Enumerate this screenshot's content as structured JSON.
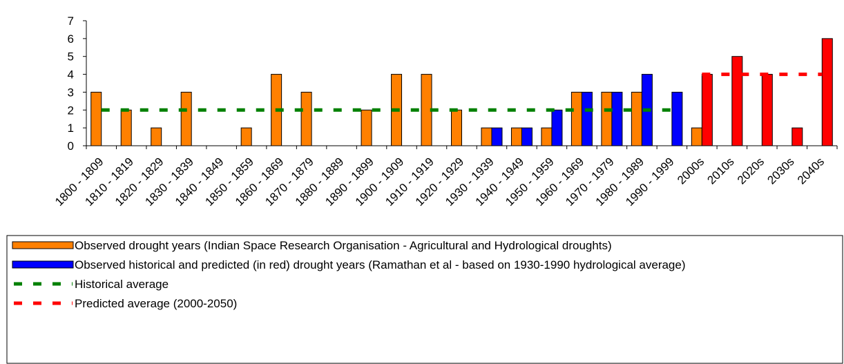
{
  "chart_data": {
    "type": "bar",
    "categories": [
      "1800 - 1809",
      "1810 - 1819",
      "1820 - 1829",
      "1830 - 1839",
      "1840 - 1849",
      "1850 - 1859",
      "1860 - 1869",
      "1870 - 1879",
      "1880 - 1889",
      "1890 - 1899",
      "1900 - 1909",
      "1910 - 1919",
      "1920 - 1929",
      "1930 - 1939",
      "1940 - 1949",
      "1950 - 1959",
      "1960 - 1969",
      "1970 - 1979",
      "1980 - 1989",
      "1990 - 1999",
      "2000s",
      "2010s",
      "2020s",
      "2030s",
      "2040s"
    ],
    "series": [
      {
        "name": "Observed drought years (Indian Space Research Organisation - Agricultural and Hydrological droughts)",
        "color": "#ff8000",
        "values": [
          3,
          2,
          1,
          3,
          0,
          1,
          4,
          3,
          0,
          2,
          4,
          4,
          2,
          1,
          1,
          1,
          3,
          3,
          3,
          null,
          1,
          null,
          null,
          null,
          null
        ]
      },
      {
        "name": "Observed historical and predicted (in red) drought years (Ramathan et al - based on 1930-1990 hydrological average)",
        "color": "#0000ff",
        "values": [
          null,
          null,
          null,
          null,
          null,
          null,
          null,
          null,
          null,
          null,
          null,
          null,
          null,
          1,
          1,
          2,
          3,
          3,
          4,
          3,
          4,
          5,
          4,
          1,
          6
        ],
        "point_colors": [
          null,
          null,
          null,
          null,
          null,
          null,
          null,
          null,
          null,
          null,
          null,
          null,
          null,
          "#0000ff",
          "#0000ff",
          "#0000ff",
          "#0000ff",
          "#0000ff",
          "#0000ff",
          "#0000ff",
          "#ff0000",
          "#ff0000",
          "#ff0000",
          "#ff0000",
          "#ff0000"
        ]
      },
      {
        "name": "Historical average",
        "color": "#008000",
        "style": "dashed",
        "values": [
          2,
          2,
          2,
          2,
          2,
          2,
          2,
          2,
          2,
          2,
          2,
          2,
          2,
          2,
          2,
          2,
          2,
          2,
          2,
          2,
          null,
          null,
          null,
          null,
          null
        ]
      },
      {
        "name": "Predicted average (2000-2050)",
        "color": "#ff0000",
        "style": "dashed",
        "values": [
          null,
          null,
          null,
          null,
          null,
          null,
          null,
          null,
          null,
          null,
          null,
          null,
          null,
          null,
          null,
          null,
          null,
          null,
          null,
          null,
          4,
          4,
          4,
          4,
          4
        ]
      }
    ],
    "ylim": [
      0,
      7
    ],
    "yticks": [
      0,
      1,
      2,
      3,
      4,
      5,
      6,
      7
    ]
  }
}
